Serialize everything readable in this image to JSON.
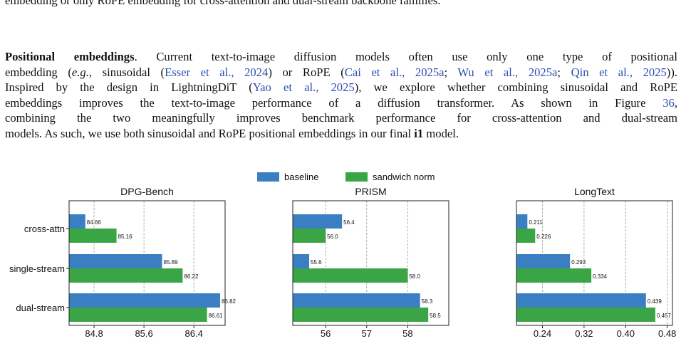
{
  "caption_fragment": {
    "line1": "embedding or only RoPE embedding for cross-attention and dual-stream backbone families."
  },
  "paragraph": {
    "heading": "Positional embeddings",
    "l1_a": ". Current text-to-image diffusion models often use only one type of positional",
    "l2_a": "embedding (",
    "l2_eg": "e.g.",
    "l2_b": ", sinusoidal (",
    "cite_esser": "Esser et al., 2024",
    "l2_c": ") or RoPE (",
    "cite_cai": "Cai et al., 2025a",
    "l2_d": "; ",
    "cite_wu": "Wu et al., 2025a",
    "l2_e": "; ",
    "cite_qin": "Qin et al., 2025",
    "l2_f": ")).",
    "l3_a": "Inspired by the design in LightningDiT (",
    "cite_yao": "Yao et al., 2025",
    "l3_b": "), we explore whether combining sinusoidal and RoPE",
    "l4": "embeddings improves the text-to-image performance of a diffusion transformer. As shown in Figure ",
    "fig_ref": "36",
    "l4_end": ",",
    "l5": "combining the two meaningfully improves benchmark performance for cross-attention and dual-stream",
    "l6_a": "models. As such, we use both sinusoidal and RoPE positional embeddings in our final ",
    "model_name": "i1",
    "l6_b": " model."
  },
  "colors": {
    "baseline": "#3a7fc2",
    "sandwich": "#3aa544",
    "grid": "#9a9a9a"
  },
  "chart_data": {
    "type": "bar",
    "orientation": "horizontal",
    "legend": {
      "placement": "top-center",
      "entries": [
        "baseline",
        "sandwich norm"
      ]
    },
    "categories": [
      "cross-attn",
      "single-stream",
      "dual-stream"
    ],
    "grid": "vertical dashed",
    "panels": [
      {
        "title": "DPG-Bench",
        "xlim": [
          84.4,
          86.9
        ],
        "xticks": [
          84.8,
          85.6,
          86.4
        ],
        "xtick_labels": [
          "84.8",
          "85.6",
          "86.4"
        ],
        "series": [
          {
            "name": "baseline",
            "values": [
              84.66,
              85.89,
              86.82
            ],
            "labels": [
              "84.66",
              "85.89",
              "86.82"
            ]
          },
          {
            "name": "sandwich norm",
            "values": [
              85.16,
              86.22,
              86.61
            ],
            "labels": [
              "85.16",
              "86.22",
              "86.61"
            ]
          }
        ]
      },
      {
        "title": "PRISM",
        "xlim": [
          55.2,
          59.0
        ],
        "xticks": [
          56,
          57,
          58
        ],
        "xtick_labels": [
          "56",
          "57",
          "58"
        ],
        "series": [
          {
            "name": "baseline",
            "values": [
              56.4,
              55.6,
              58.3
            ],
            "labels": [
              "56.4",
              "55.6",
              "58.3"
            ]
          },
          {
            "name": "sandwich norm",
            "values": [
              56.0,
              58.0,
              58.5
            ],
            "labels": [
              "56.0",
              "58.0",
              "58.5"
            ]
          }
        ]
      },
      {
        "title": "LongText",
        "xlim": [
          0.19,
          0.49
        ],
        "xticks": [
          0.24,
          0.32,
          0.4,
          0.48
        ],
        "xtick_labels": [
          "0.24",
          "0.32",
          "0.40",
          "0.48"
        ],
        "series": [
          {
            "name": "baseline",
            "values": [
              0.211,
              0.293,
              0.439
            ],
            "labels": [
              "0.211",
              "0.293",
              "0.439"
            ]
          },
          {
            "name": "sandwich norm",
            "values": [
              0.226,
              0.334,
              0.457
            ],
            "labels": [
              "0.226",
              "0.334",
              "0.457"
            ]
          }
        ]
      }
    ]
  }
}
